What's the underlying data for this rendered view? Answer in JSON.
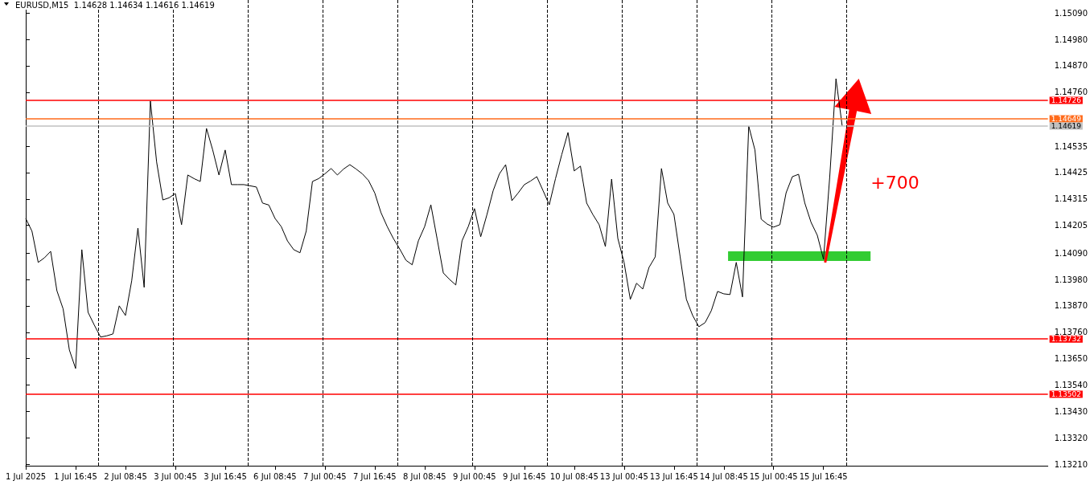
{
  "chart_data": {
    "type": "line",
    "title": "EURUSD,M15  1.14628 1.14634 1.14616 1.14619",
    "marker": "none",
    "line_style": "solid",
    "grid": false,
    "categories": [
      "1 Jul 2025",
      null,
      null,
      null,
      null,
      null,
      null,
      null,
      "1 Jul 16:45",
      null,
      null,
      null,
      null,
      null,
      null,
      null,
      "2 Jul 08:45",
      null,
      null,
      null,
      null,
      null,
      null,
      null,
      "3 Jul 00:45",
      null,
      null,
      null,
      null,
      null,
      null,
      null,
      "3 Jul 16:45",
      null,
      null,
      null,
      null,
      null,
      null,
      null,
      "6 Jul 08:45",
      null,
      null,
      null,
      null,
      null,
      null,
      null,
      "7 Jul 00:45",
      null,
      null,
      null,
      null,
      null,
      null,
      null,
      "7 Jul 16:45",
      null,
      null,
      null,
      null,
      null,
      null,
      null,
      "8 Jul 08:45",
      null,
      null,
      null,
      null,
      null,
      null,
      null,
      "9 Jul 00:45",
      null,
      null,
      null,
      null,
      null,
      null,
      null,
      "9 Jul 16:45",
      null,
      null,
      null,
      null,
      null,
      null,
      null,
      "10 Jul 08:45",
      null,
      null,
      null,
      null,
      null,
      null,
      null,
      "13 Jul 00:45",
      null,
      null,
      null,
      null,
      null,
      null,
      null,
      "13 Jul 16:45",
      null,
      null,
      null,
      null,
      null,
      null,
      null,
      "14 Jul 08:45",
      null,
      null,
      null,
      null,
      null,
      null,
      null,
      "15 Jul 00:45",
      null,
      null,
      null,
      null,
      null,
      null,
      null,
      "15 Jul 16:45",
      null,
      null,
      null,
      null,
      null,
      null,
      null,
      null,
      null,
      null,
      null,
      null,
      null,
      null,
      null,
      null,
      null,
      null,
      null,
      null,
      null,
      null,
      null,
      null,
      null,
      null,
      null,
      null,
      null,
      null,
      null,
      null,
      null,
      null,
      null,
      null
    ],
    "ylim": [
      1.13204,
      1.15144
    ],
    "yticks": [
      {
        "value": 1.1321,
        "label": "1.13210"
      },
      {
        "value": 1.1332,
        "label": "1.13320"
      },
      {
        "value": 1.1343,
        "label": "1.13430"
      },
      {
        "value": 1.1354,
        "label": "1.13540"
      },
      {
        "value": 1.1365,
        "label": "1.13650"
      },
      {
        "value": 1.1376,
        "label": "1.13760"
      },
      {
        "value": 1.1387,
        "label": "1.13870"
      },
      {
        "value": 1.1398,
        "label": "1.13980"
      },
      {
        "value": 1.1409,
        "label": "1.14090"
      },
      {
        "value": 1.14205,
        "label": "1.14205"
      },
      {
        "value": 1.14315,
        "label": "1.14315"
      },
      {
        "value": 1.14425,
        "label": "1.14425"
      },
      {
        "value": 1.14535,
        "label": "1.14535"
      },
      {
        "value": 1.1476,
        "label": "1.14760"
      },
      {
        "value": 1.1487,
        "label": "1.14870"
      },
      {
        "value": 1.1498,
        "label": "1.14980"
      },
      {
        "value": 1.1509,
        "label": "1.15090"
      }
    ],
    "series": [
      {
        "color": "#000000",
        "values": [
          1.14234,
          1.14181,
          1.14051,
          1.1407,
          1.14097,
          1.13933,
          1.13857,
          1.13686,
          1.13609,
          1.14104,
          1.13843,
          1.1379,
          1.1374,
          1.13745,
          1.13753,
          1.1387,
          1.1383,
          1.13974,
          1.14194,
          1.13947,
          1.14723,
          1.14469,
          1.14311,
          1.1432,
          1.14338,
          1.14208,
          1.14415,
          1.144,
          1.14388,
          1.14609,
          1.14519,
          1.14415,
          1.14519,
          1.14375,
          1.14375,
          1.14375,
          1.1437,
          1.14365,
          1.14298,
          1.1429,
          1.14234,
          1.142,
          1.1414,
          1.14104,
          1.14091,
          1.14181,
          1.14388,
          1.144,
          1.1442,
          1.14442,
          1.14415,
          1.1444,
          1.14458,
          1.1444,
          1.1442,
          1.14392,
          1.1434,
          1.14258,
          1.142,
          1.1415,
          1.14107,
          1.1406,
          1.14041,
          1.14141,
          1.142,
          1.14291,
          1.1415,
          1.14007,
          1.1398,
          1.13957,
          1.14141,
          1.142,
          1.14275,
          1.14158,
          1.1425,
          1.1435,
          1.1442,
          1.14458,
          1.14308,
          1.1434,
          1.14375,
          1.1439,
          1.14408,
          1.1435,
          1.14291,
          1.144,
          1.145,
          1.14592,
          1.14432,
          1.14452,
          1.14298,
          1.1425,
          1.14208,
          1.14117,
          1.14398,
          1.14151,
          1.14051,
          1.13897,
          1.13964,
          1.1394,
          1.1403,
          1.14074,
          1.14442,
          1.14298,
          1.14251,
          1.14074,
          1.13897,
          1.1383,
          1.13783,
          1.138,
          1.1385,
          1.1393,
          1.1392,
          1.13917,
          1.14051,
          1.13907,
          1.14619,
          1.14519,
          1.14231,
          1.1421,
          1.14198,
          1.14208,
          1.14341,
          1.14408,
          1.14418,
          1.14298,
          1.14218,
          1.14164,
          1.14064,
          1.14408,
          1.14816,
          1.14619,
          null,
          null,
          null,
          null,
          null,
          null,
          null,
          null,
          null,
          null,
          null,
          null,
          null,
          null,
          null,
          null,
          null,
          null,
          null,
          null,
          null,
          null,
          null,
          null,
          null,
          null,
          null,
          null,
          null,
          null,
          null,
          null,
          null
        ]
      }
    ],
    "ref_lines": [
      {
        "axis": "y",
        "value": 1.14726,
        "label": "1.14726",
        "color": "#ff0000",
        "line_style": "solid"
      },
      {
        "axis": "y",
        "value": 1.14649,
        "label": "1.14649",
        "color": "#ff6a1a",
        "line_style": "solid"
      },
      {
        "axis": "y",
        "value": 1.14619,
        "label": "1.14619",
        "color": "#c0c0c0",
        "line_style": "solid"
      },
      {
        "axis": "y",
        "value": 1.13732,
        "label": "1.13732",
        "color": "#ff0000",
        "line_style": "solid"
      },
      {
        "axis": "y",
        "value": 1.13502,
        "label": "1.13502",
        "color": "#ff0000",
        "line_style": "solid"
      }
    ],
    "annotations": [
      "+700"
    ]
  }
}
